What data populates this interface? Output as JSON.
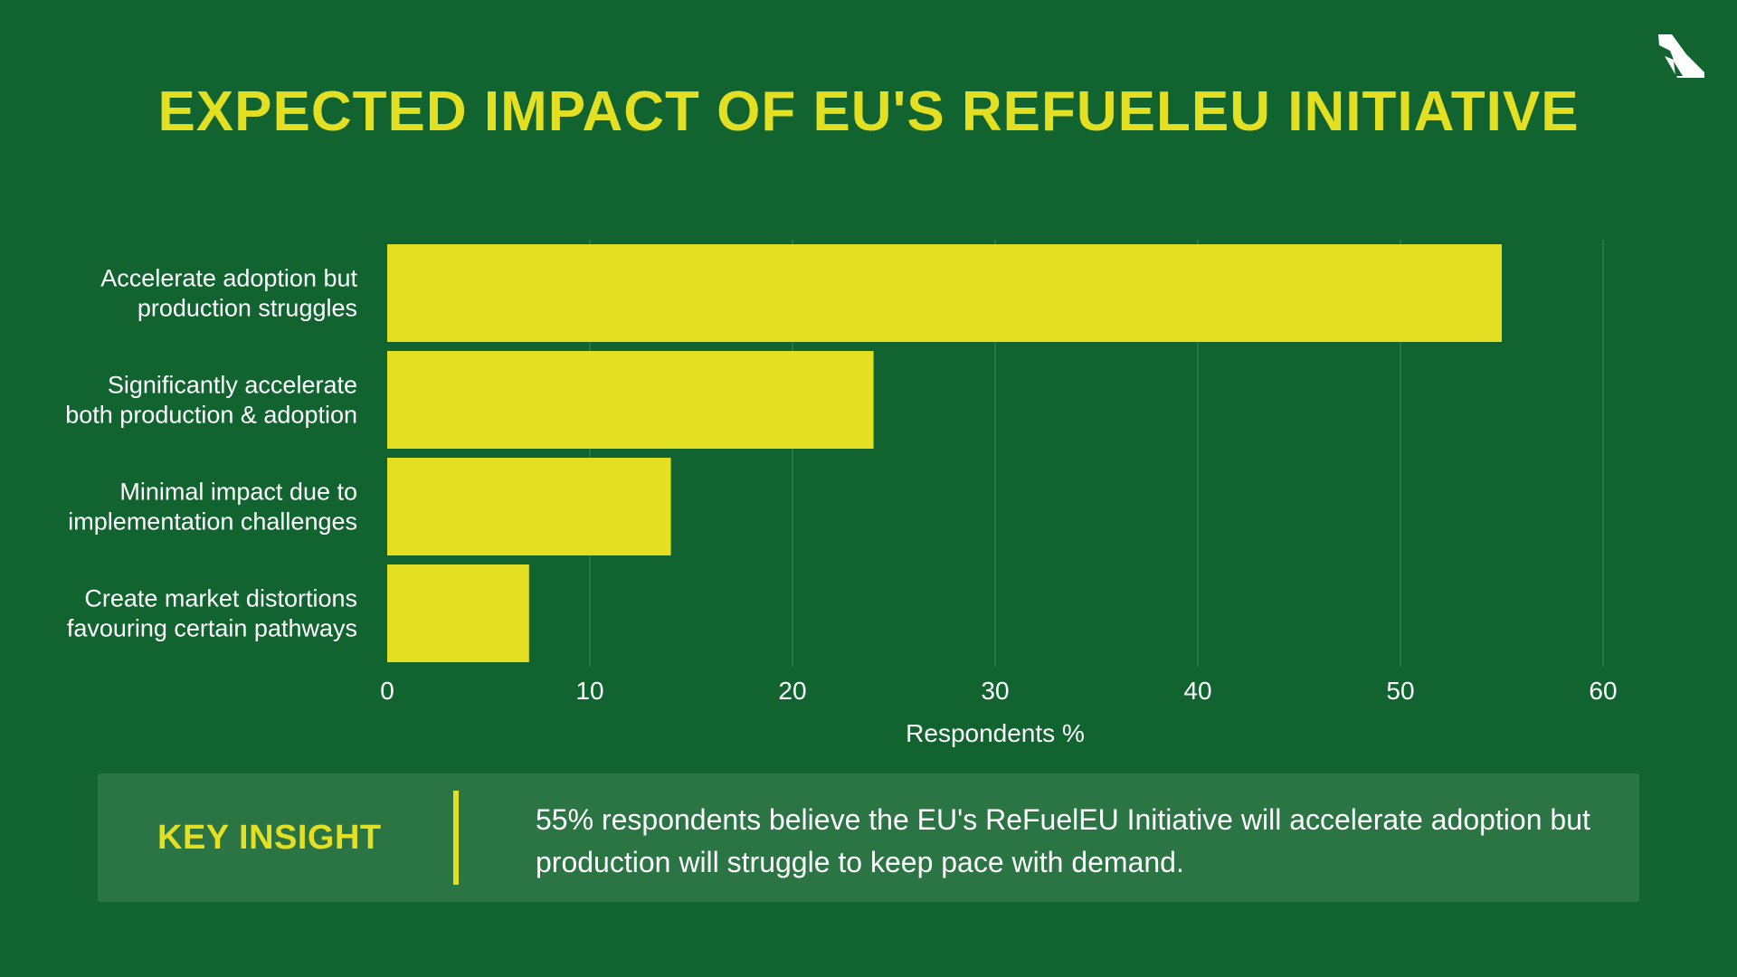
{
  "page": {
    "title": "EXPECTED IMPACT OF EU'S REFUELEU INITIATIVE",
    "logo_icon": "airplane-tail-icon"
  },
  "colors": {
    "background": "#116430",
    "accent": "#e3df23",
    "panel": "#2a7543",
    "text": "#ffffff"
  },
  "chart_data": {
    "type": "bar",
    "orientation": "horizontal",
    "categories": [
      [
        "Accelerate adoption but",
        "production struggles"
      ],
      [
        "Significantly accelerate",
        "both production & adoption"
      ],
      [
        "Minimal impact due to",
        "implementation challenges"
      ],
      [
        "Create market distortions",
        "favouring certain pathways"
      ]
    ],
    "values": [
      55,
      24,
      14,
      7
    ],
    "title": "EXPECTED IMPACT OF EU'S REFUELEU INITIATIVE",
    "xlabel": "Respondents %",
    "ylabel": "",
    "xlim": [
      0,
      60
    ],
    "xticks": [
      0,
      10,
      20,
      30,
      40,
      50,
      60
    ],
    "grid": "vertical",
    "bar_color": "#e3df23"
  },
  "insight": {
    "label": "KEY INSIGHT",
    "text": "55% respondents believe the EU's ReFuelEU Initiative will accelerate adoption but production will struggle to keep pace with demand."
  }
}
